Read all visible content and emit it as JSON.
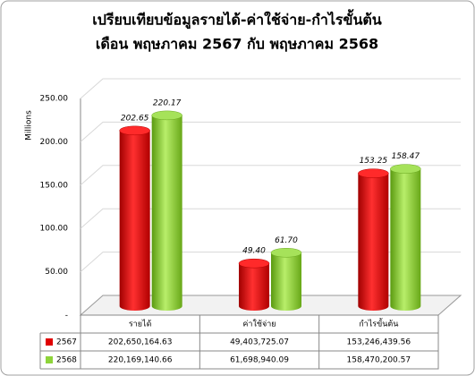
{
  "chart_data": {
    "type": "bar3d",
    "title": "เปรียบเทียบข้อมูลรายได้-ค่าใช้จ่าย-กำไรขั้นต้น",
    "subtitle": "เดือน พฤษภาคม 2567 กับ พฤษภาคม 2568",
    "y_label": "Millions",
    "categories": [
      "รายได้",
      "ค่าใช้จ่าย",
      "กำไรขั้นต้น"
    ],
    "series": [
      {
        "name": "2567",
        "color": "#e00000",
        "values": [
          202.65,
          49.4,
          153.25
        ],
        "value_labels": [
          "202.65",
          "49.40",
          "153.25"
        ],
        "table_labels": [
          "202,650,164.63",
          "49,403,725.07",
          "153,246,439.56"
        ]
      },
      {
        "name": "2568",
        "color": "#8ed43a",
        "values": [
          220.17,
          61.7,
          158.47
        ],
        "value_labels": [
          "220.17",
          "61.70",
          "158.47"
        ],
        "table_labels": [
          "220,169,140.66",
          "61,698,940.09",
          "158,470,200.57"
        ]
      }
    ],
    "ylim": [
      0,
      250
    ],
    "yticks": [
      {
        "value": 0,
        "label": "-"
      },
      {
        "value": 50,
        "label": "50.00"
      },
      {
        "value": 100,
        "label": "100.00"
      },
      {
        "value": 150,
        "label": "150.00"
      },
      {
        "value": 200,
        "label": "200.00"
      },
      {
        "value": 250,
        "label": "250.00"
      }
    ],
    "grid": true
  }
}
